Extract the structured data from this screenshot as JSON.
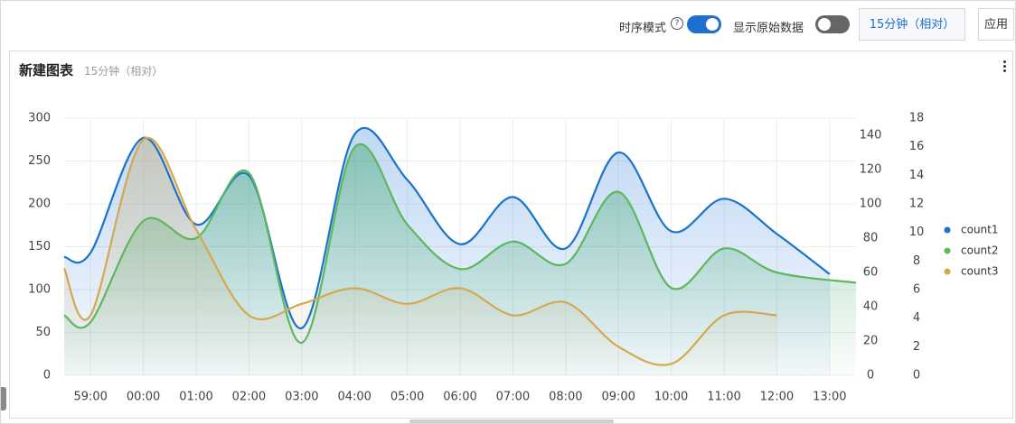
{
  "toolbar": {
    "time_mode_label": "时序模式",
    "help_icon": "question-circle-icon",
    "time_mode_on": true,
    "show_raw_label": "显示原始数据",
    "show_raw_on": false,
    "time_range_label": "15分钟（相对）",
    "apply_label": "应用"
  },
  "panel": {
    "title": "新建图表",
    "subtitle": "15分钟（相对）",
    "menu_icon": "more-vertical-icon"
  },
  "chart_data": {
    "type": "area",
    "x": [
      "59:00",
      "00:00",
      "01:00",
      "02:00",
      "03:00",
      "04:00",
      "05:00",
      "06:00",
      "07:00",
      "08:00",
      "09:00",
      "10:00",
      "11:00",
      "12:00",
      "13:00"
    ],
    "x_start": "58:30",
    "x_end": "13:30",
    "grid": true,
    "legend_position": "right",
    "y_axes": [
      {
        "id": "left",
        "ylim": [
          0,
          300
        ],
        "ticks": [
          0,
          50,
          100,
          150,
          200,
          250,
          300
        ]
      },
      {
        "id": "right1",
        "ylim": [
          0,
          150
        ],
        "ticks": [
          0,
          20,
          40,
          60,
          80,
          100,
          120,
          140
        ]
      },
      {
        "id": "right2",
        "ylim": [
          0,
          18
        ],
        "ticks": [
          0,
          2,
          4,
          6,
          8,
          10,
          12,
          14,
          16,
          18
        ]
      }
    ],
    "series": [
      {
        "name": "count1",
        "color": "#1a73c9",
        "axis": "left",
        "points": [
          [
            "58:30",
            138
          ],
          [
            "59:00",
            143
          ],
          [
            "00:00",
            277
          ],
          [
            "01:00",
            176
          ],
          [
            "02:00",
            233
          ],
          [
            "03:00",
            55
          ],
          [
            "04:00",
            281
          ],
          [
            "05:00",
            228
          ],
          [
            "06:00",
            153
          ],
          [
            "07:00",
            208
          ],
          [
            "08:00",
            148
          ],
          [
            "09:00",
            260
          ],
          [
            "10:00",
            168
          ],
          [
            "11:00",
            206
          ],
          [
            "12:00",
            165
          ],
          [
            "13:00",
            118
          ]
        ]
      },
      {
        "name": "count2",
        "color": "#5cb85c",
        "axis": "right1",
        "points": [
          [
            "58:30",
            35
          ],
          [
            "59:00",
            31
          ],
          [
            "00:00",
            90
          ],
          [
            "01:00",
            80
          ],
          [
            "02:00",
            118
          ],
          [
            "03:00",
            19
          ],
          [
            "04:00",
            133
          ],
          [
            "05:00",
            88
          ],
          [
            "06:00",
            62
          ],
          [
            "07:00",
            78
          ],
          [
            "08:00",
            65
          ],
          [
            "09:00",
            107
          ],
          [
            "10:00",
            51
          ],
          [
            "11:00",
            74
          ],
          [
            "12:00",
            60
          ],
          [
            "13:30",
            54
          ]
        ]
      },
      {
        "name": "count3",
        "color": "#d4a94e",
        "axis": "right2",
        "points": [
          [
            "58:30",
            7.5
          ],
          [
            "59:00",
            4.2
          ],
          [
            "00:00",
            16.5
          ],
          [
            "01:00",
            10.2
          ],
          [
            "02:00",
            4.2
          ],
          [
            "03:00",
            5.0
          ],
          [
            "04:00",
            6.1
          ],
          [
            "05:00",
            5.0
          ],
          [
            "06:00",
            6.1
          ],
          [
            "07:00",
            4.2
          ],
          [
            "08:00",
            5.1
          ],
          [
            "09:00",
            2.0
          ],
          [
            "10:00",
            0.8
          ],
          [
            "11:00",
            4.2
          ],
          [
            "12:00",
            4.2
          ]
        ]
      }
    ]
  }
}
